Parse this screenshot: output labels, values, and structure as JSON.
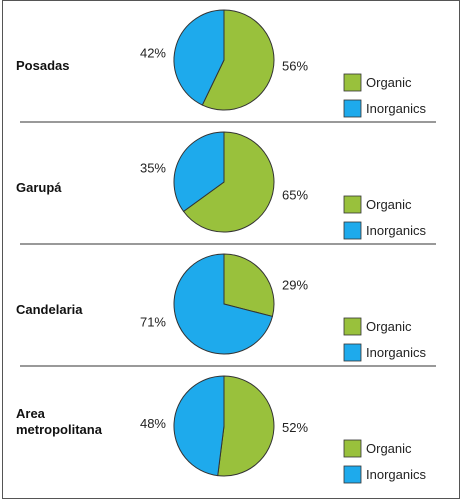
{
  "colors": {
    "organic": "#99c13c",
    "inorganic": "#1eaaec",
    "slice_stroke": "#333333",
    "divider": "#333333"
  },
  "chart_data": [
    {
      "type": "pie",
      "title": "Posadas",
      "slices": [
        {
          "name": "Organic",
          "value": 56,
          "label": "56%"
        },
        {
          "name": "Inorganics",
          "value": 42,
          "label": "42%"
        }
      ],
      "legend": [
        "Organic",
        "Inorganics"
      ]
    },
    {
      "type": "pie",
      "title": "Garupá",
      "slices": [
        {
          "name": "Organic",
          "value": 65,
          "label": "65%"
        },
        {
          "name": "Inorganics",
          "value": 35,
          "label": "35%"
        }
      ],
      "legend": [
        "Organic",
        "Inorganics"
      ]
    },
    {
      "type": "pie",
      "title": "Candelaria",
      "slices": [
        {
          "name": "Organic",
          "value": 29,
          "label": "29%"
        },
        {
          "name": "Inorganics",
          "value": 71,
          "label": "71%"
        }
      ],
      "legend": [
        "Organic",
        "Inorganics"
      ]
    },
    {
      "type": "pie",
      "title": "Area metropolitana",
      "title_lines": [
        "Area",
        "metropolitana"
      ],
      "slices": [
        {
          "name": "Organic",
          "value": 52,
          "label": "52%"
        },
        {
          "name": "Inorganics",
          "value": 48,
          "label": "48%"
        }
      ],
      "legend": [
        "Organic",
        "Inorganics"
      ]
    }
  ]
}
